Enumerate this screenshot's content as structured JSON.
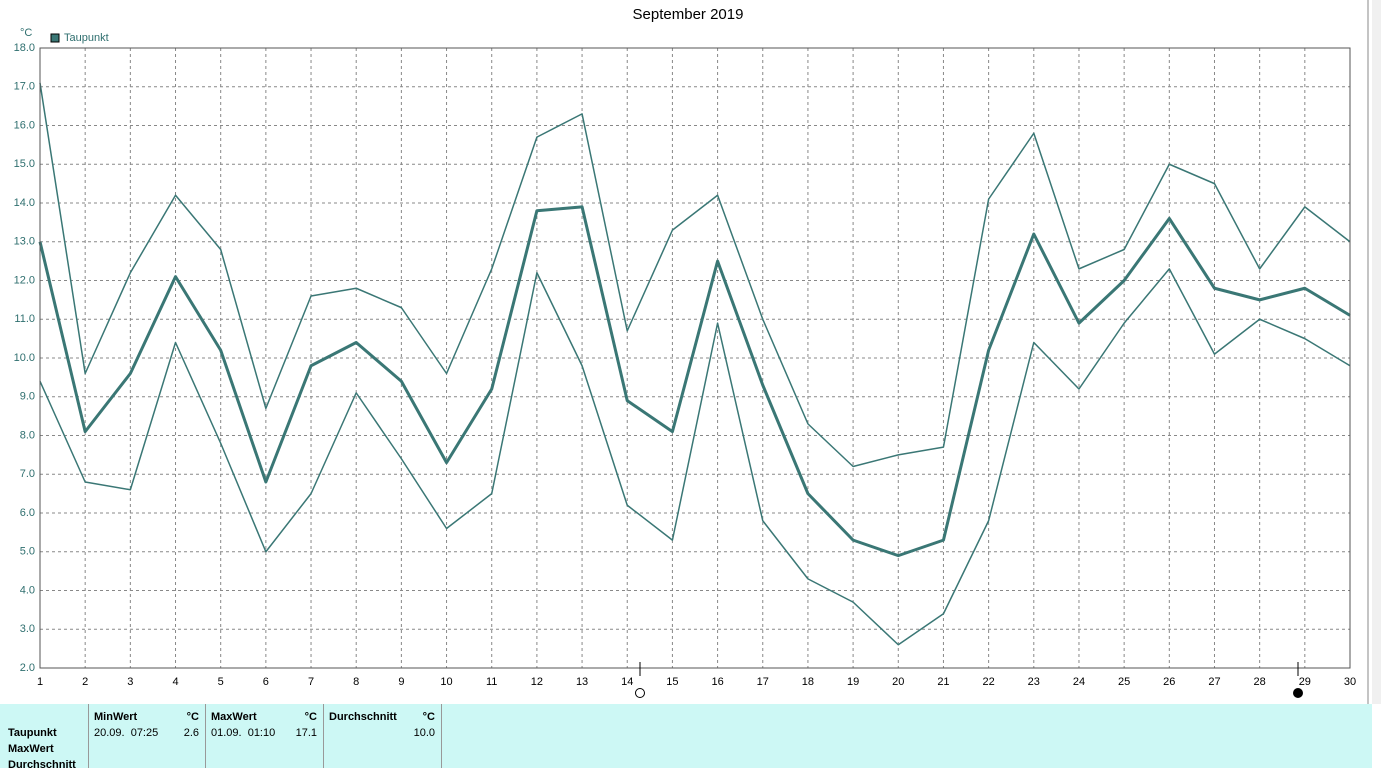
{
  "chart_data": {
    "type": "line",
    "title": "September 2019",
    "y_unit": "°C",
    "grid": true,
    "legend": "top-left",
    "x": [
      1,
      2,
      3,
      4,
      5,
      6,
      7,
      8,
      9,
      10,
      11,
      12,
      13,
      14,
      15,
      16,
      17,
      18,
      19,
      20,
      21,
      22,
      23,
      24,
      25,
      26,
      27,
      28,
      29,
      30
    ],
    "xlim": [
      1,
      30
    ],
    "xticks": [
      1,
      2,
      3,
      4,
      5,
      6,
      7,
      8,
      9,
      10,
      11,
      12,
      13,
      14,
      15,
      16,
      17,
      18,
      19,
      20,
      21,
      22,
      23,
      24,
      25,
      26,
      27,
      28,
      29,
      30
    ],
    "ylim": [
      2,
      18
    ],
    "yticks": [
      {
        "value": 2,
        "label": "2.0"
      },
      {
        "value": 3,
        "label": "3.0"
      },
      {
        "value": 4,
        "label": "4.0"
      },
      {
        "value": 5,
        "label": "5.0"
      },
      {
        "value": 6,
        "label": "6.0"
      },
      {
        "value": 7,
        "label": "7.0"
      },
      {
        "value": 8,
        "label": "8.0"
      },
      {
        "value": 9,
        "label": "9.0"
      },
      {
        "value": 10,
        "label": "10.0"
      },
      {
        "value": 11,
        "label": "11.0"
      },
      {
        "value": 12,
        "label": "12.0"
      },
      {
        "value": 13,
        "label": "13.0"
      },
      {
        "value": 14,
        "label": "14.0"
      },
      {
        "value": 15,
        "label": "15.0"
      },
      {
        "value": 16,
        "label": "16.0"
      },
      {
        "value": 17,
        "label": "17.0"
      },
      {
        "value": 18,
        "label": "18.0"
      }
    ],
    "series": [
      {
        "color": "#3a7775",
        "values": [
          17.1,
          9.6,
          12.2,
          14.2,
          12.8,
          8.7,
          11.6,
          11.8,
          11.3,
          9.6,
          12.3,
          15.7,
          16.3,
          10.7,
          13.3,
          14.2,
          11.0,
          8.3,
          7.2,
          7.5,
          7.7,
          14.1,
          15.8,
          12.3,
          12.8,
          15.0,
          14.5,
          12.3,
          13.9,
          13.0
        ]
      },
      {
        "name": "Taupunkt",
        "color": "#3a7775",
        "values": [
          13.0,
          8.1,
          9.6,
          12.1,
          10.2,
          6.8,
          9.8,
          10.4,
          9.4,
          7.3,
          9.2,
          13.8,
          13.9,
          8.9,
          8.1,
          12.5,
          9.3,
          6.5,
          5.3,
          4.9,
          5.3,
          10.2,
          13.2,
          10.9,
          12.0,
          13.6,
          11.8,
          11.5,
          11.8,
          11.1
        ]
      },
      {
        "color": "#3a7775",
        "values": [
          9.4,
          6.8,
          6.6,
          10.4,
          7.8,
          5.0,
          6.5,
          9.1,
          7.4,
          5.6,
          6.5,
          12.2,
          9.8,
          6.2,
          5.3,
          10.9,
          5.8,
          4.3,
          3.7,
          2.6,
          3.4,
          5.8,
          10.4,
          9.2,
          10.9,
          12.3,
          10.1,
          11.0,
          10.5,
          9.8
        ]
      }
    ]
  },
  "table": {
    "row_labels": [
      "Taupunkt",
      "MaxWert",
      "Durchschnitt"
    ],
    "groups": [
      {
        "title": "MinWert",
        "unit": "°C",
        "time": "20.09.  07:25",
        "value": "2.6"
      },
      {
        "title": "MaxWert",
        "unit": "°C",
        "time": "01.09.  01:10",
        "value": "17.1"
      },
      {
        "title": "Durchschnitt",
        "unit": "°C",
        "value": "10.0"
      }
    ]
  }
}
